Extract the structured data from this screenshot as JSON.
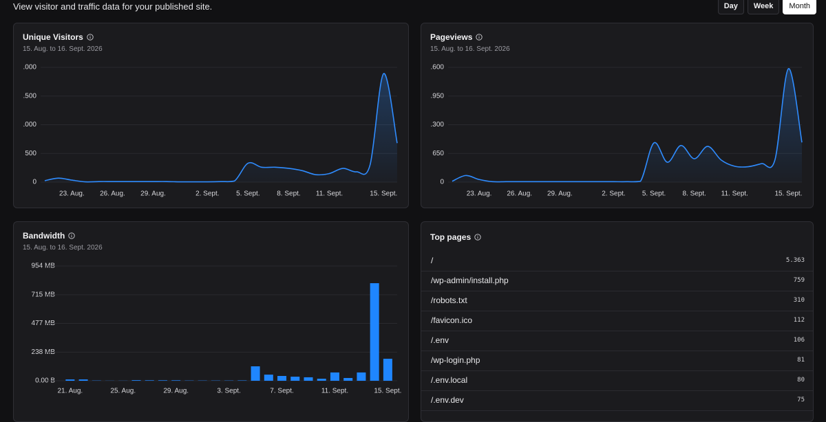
{
  "header": {
    "subtitle": "View visitor and traffic data for your published site.",
    "ranges": [
      "Day",
      "Week",
      "Month"
    ],
    "active_range": 2
  },
  "chart_data": [
    {
      "type": "line",
      "title": "Unique Visitors",
      "subtitle": "15. Aug. to 16. Sept. 2026",
      "categories": [
        null,
        null,
        "23. Aug.",
        null,
        null,
        "26. Aug.",
        null,
        null,
        "29. Aug.",
        null,
        null,
        null,
        "2. Sept.",
        null,
        null,
        "5. Sept.",
        null,
        null,
        "8. Sept.",
        null,
        null,
        "11. Sept.",
        null,
        null,
        null,
        "15. Sept.",
        null
      ],
      "values": [
        25,
        70,
        35,
        5,
        10,
        10,
        10,
        10,
        10,
        10,
        5,
        5,
        5,
        10,
        20,
        330,
        260,
        260,
        240,
        200,
        130,
        150,
        240,
        180,
        300,
        1890,
        680
      ],
      "color": "#2f8cff",
      "ylim": [
        0,
        2000
      ],
      "yticks": [
        0,
        500,
        {
          "value": 1000,
          "label": ".000"
        },
        {
          "value": 1500,
          "label": ".500"
        },
        {
          "value": 2000,
          "label": ".000"
        }
      ],
      "grid": true
    },
    {
      "type": "line",
      "title": "Pageviews",
      "subtitle": "15. Aug. to 16. Sept. 2026",
      "categories": [
        null,
        null,
        "23. Aug.",
        null,
        null,
        "26. Aug.",
        null,
        null,
        "29. Aug.",
        null,
        null,
        null,
        "2. Sept.",
        null,
        null,
        "5. Sept.",
        null,
        null,
        "8. Sept.",
        null,
        null,
        "11. Sept.",
        null,
        null,
        null,
        "15. Sept.",
        null
      ],
      "values": [
        20,
        150,
        60,
        10,
        10,
        10,
        10,
        10,
        10,
        10,
        10,
        10,
        10,
        10,
        20,
        890,
        450,
        830,
        530,
        810,
        500,
        360,
        350,
        420,
        510,
        2570,
        900
      ],
      "color": "#2f8cff",
      "ylim": [
        0,
        2600
      ],
      "yticks": [
        0,
        650,
        {
          "value": 1300,
          "label": ".300"
        },
        {
          "value": 1950,
          "label": ".950"
        },
        {
          "value": 2600,
          "label": ".600"
        }
      ],
      "grid": true
    },
    {
      "type": "bar",
      "title": "Bandwidth",
      "subtitle": "15. Aug. to 16. Sept. 2026",
      "categories": [
        null,
        "21. Aug.",
        null,
        null,
        null,
        "25. Aug.",
        null,
        null,
        null,
        "29. Aug.",
        null,
        null,
        null,
        "3. Sept.",
        null,
        null,
        null,
        "7. Sept.",
        null,
        null,
        null,
        "11. Sept.",
        null,
        null,
        null,
        "15. Sept."
      ],
      "values": [
        0,
        11,
        11,
        2,
        1,
        1,
        5,
        4,
        4,
        4,
        2,
        2,
        2,
        2,
        3,
        120,
        51,
        40,
        34,
        29,
        17,
        69,
        23,
        69,
        811,
        183
      ],
      "color": "#1f86ff",
      "ylim": [
        0,
        954
      ],
      "yticks": [
        {
          "value": 0,
          "label": "0.00 B"
        },
        {
          "value": 238,
          "label": "238 MB"
        },
        {
          "value": 477,
          "label": "477 MB"
        },
        {
          "value": 715,
          "label": "715 MB"
        },
        {
          "value": 954,
          "label": "954 MB"
        }
      ],
      "grid": true
    }
  ],
  "top_pages": {
    "title": "Top pages",
    "rows": [
      [
        "/",
        "5.363"
      ],
      [
        "/wp-admin/install.php",
        "759"
      ],
      [
        "/robots.txt",
        "310"
      ],
      [
        "/favicon.ico",
        "112"
      ],
      [
        "/.env",
        "106"
      ],
      [
        "/wp-login.php",
        "81"
      ],
      [
        "/.env.local",
        "80"
      ],
      [
        "/.env.dev",
        "75"
      ]
    ]
  }
}
